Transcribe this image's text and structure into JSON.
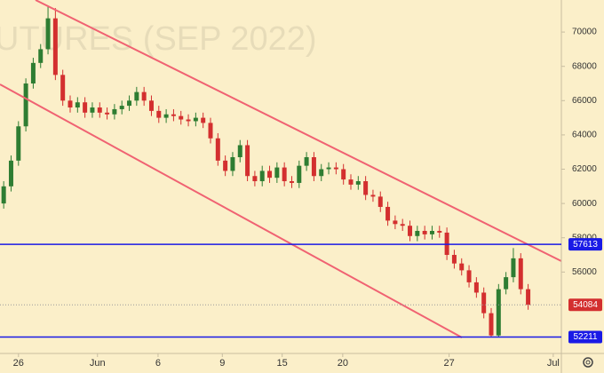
{
  "chart_data": {
    "type": "candlestick",
    "watermark": "UTURES (SEP 2022)",
    "background": "#fbefc9",
    "up_color": "#2e7d32",
    "down_color": "#d32f2f",
    "xlim": [
      0,
      76
    ],
    "xticks": [
      {
        "value": 2.5,
        "label": "26"
      },
      {
        "value": 13.2,
        "label": "Jun"
      },
      {
        "value": 21.4,
        "label": "6"
      },
      {
        "value": 30.1,
        "label": "9"
      },
      {
        "value": 38.2,
        "label": "15"
      },
      {
        "value": 46.4,
        "label": "20"
      },
      {
        "value": 60.8,
        "label": "27"
      },
      {
        "value": 74.9,
        "label": "Jul"
      }
    ],
    "ylim": [
      51250,
      71870
    ],
    "yticks": [
      56000,
      58000,
      60000,
      62000,
      64000,
      66000,
      68000,
      70000
    ],
    "open": [
      60000,
      61000,
      62500,
      64500,
      67000,
      68200,
      69000,
      70800,
      67500,
      66000,
      65600,
      65900,
      65300,
      65600,
      65300,
      65200,
      65500,
      65700,
      66000,
      66500,
      66000,
      65400,
      65000,
      65200,
      65100,
      64900,
      64800,
      65000,
      64700,
      63800,
      62500,
      61900,
      62700,
      63400,
      61600,
      61300,
      61900,
      61500,
      62100,
      61300,
      61200,
      62200,
      62700,
      61600,
      62000,
      62100,
      62000,
      61400,
      61100,
      61300,
      60500,
      60400,
      59800,
      59000,
      58800,
      58700,
      58100,
      58400,
      58200,
      58400,
      58300,
      57000,
      56500,
      56100,
      55400,
      54800,
      53600,
      52300,
      55000,
      55700,
      56800,
      55000
    ],
    "high": [
      61300,
      62800,
      64800,
      67300,
      68500,
      69300,
      71500,
      71400,
      67800,
      66300,
      66200,
      66200,
      65900,
      65900,
      65600,
      65800,
      66000,
      66300,
      66800,
      66800,
      66300,
      65700,
      65500,
      65500,
      65400,
      65200,
      65300,
      65300,
      65000,
      64100,
      62800,
      63000,
      63700,
      63700,
      61900,
      62200,
      62200,
      62400,
      62400,
      61600,
      62500,
      63000,
      63000,
      62300,
      62400,
      62400,
      62300,
      61700,
      61600,
      61600,
      60800,
      60700,
      60100,
      59300,
      59100,
      59000,
      58700,
      58700,
      58700,
      58700,
      58600,
      57300,
      56800,
      56400,
      55700,
      55100,
      53900,
      55300,
      56000,
      57400,
      57100,
      55300
    ],
    "low": [
      59700,
      60700,
      62200,
      64200,
      66700,
      67900,
      68700,
      67200,
      65700,
      65300,
      65300,
      65000,
      65000,
      65000,
      64900,
      64900,
      65200,
      65400,
      65700,
      65700,
      65100,
      64700,
      64700,
      64800,
      64600,
      64500,
      64500,
      64400,
      63500,
      62200,
      61600,
      61600,
      62400,
      61300,
      61000,
      61000,
      61200,
      61200,
      61000,
      60900,
      60900,
      61900,
      61300,
      61300,
      61700,
      61700,
      61100,
      60800,
      60800,
      60200,
      60100,
      59500,
      58700,
      58500,
      58400,
      57800,
      57800,
      57900,
      57900,
      58000,
      56700,
      56200,
      55800,
      55100,
      54500,
      53300,
      52200,
      52200,
      54700,
      55400,
      54700,
      53800
    ],
    "close": [
      61000,
      62500,
      64500,
      67000,
      68200,
      69000,
      70800,
      67500,
      66000,
      65600,
      65900,
      65300,
      65600,
      65300,
      65200,
      65500,
      65700,
      66000,
      66500,
      66000,
      65400,
      65000,
      65200,
      65100,
      64900,
      64800,
      65000,
      64700,
      63800,
      62500,
      61900,
      62700,
      63400,
      61600,
      61300,
      61900,
      61500,
      62100,
      61300,
      61200,
      62200,
      62700,
      61600,
      62000,
      62100,
      62000,
      61400,
      61100,
      61300,
      60500,
      60400,
      59800,
      59000,
      58800,
      58700,
      58100,
      58400,
      58200,
      58400,
      58300,
      57000,
      56500,
      56100,
      55400,
      54800,
      53600,
      52300,
      55000,
      55700,
      56800,
      55000,
      54084
    ],
    "trendlines": [
      {
        "color": "#f06272",
        "points": [
          [
            4.81,
            71870
          ],
          [
            76,
            56638
          ]
        ]
      },
      {
        "color": "#f06272",
        "points": [
          [
            0,
            66948
          ],
          [
            62.53,
            52182
          ]
        ]
      }
    ],
    "price_lines": [
      {
        "value": 57613,
        "color": "#1a1ae6",
        "dashed": false
      },
      {
        "value": 54084,
        "color": "#d32f2f",
        "dashed": true
      },
      {
        "value": 52211,
        "color": "#1a1ae6",
        "dashed": false
      }
    ]
  }
}
